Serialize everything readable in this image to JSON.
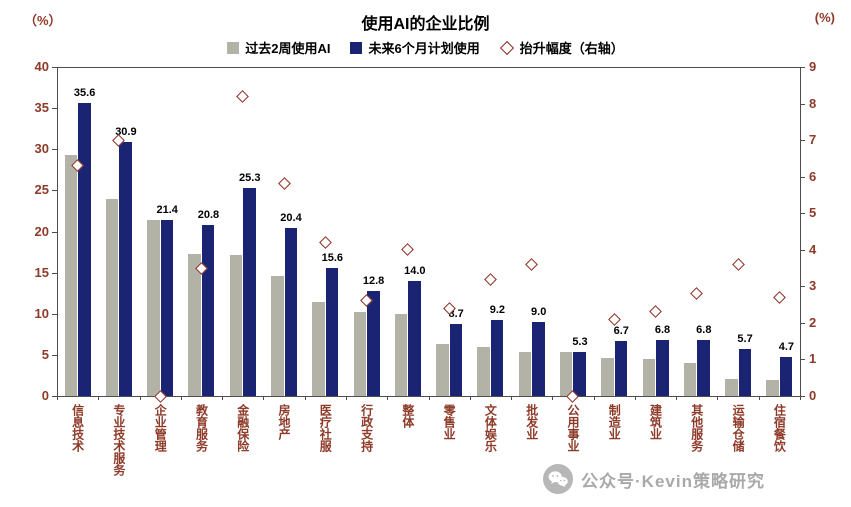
{
  "header": {
    "title": "使用AI的企业比例",
    "left_axis_unit": "（%）",
    "right_axis_unit": "(%)"
  },
  "legend": [
    {
      "label": "过去2周使用AI",
      "swatch": "gray-square"
    },
    {
      "label": "未来6个月计划使用",
      "swatch": "navy-square"
    },
    {
      "label": "抬升幅度（右轴）",
      "swatch": "diamond-outline"
    }
  ],
  "colors": {
    "gray_bar": "#b3b2a6",
    "navy_bar": "#1a2472",
    "diamond_border": "#8b2a20",
    "axis_text": "#8e3a28",
    "axis_line": "#4d4d4d",
    "value_label": "#000000"
  },
  "watermark": {
    "icon": "wechat-icon",
    "text": "公众号·Kevin策略研究"
  },
  "chart_data": {
    "type": "bar",
    "title": "使用AI的企业比例",
    "categories": [
      "信息技术",
      "专业技术服务",
      "企业管理",
      "教育服务",
      "金融保险",
      "房地产",
      "医疗社服",
      "行政支持",
      "整体",
      "零售业",
      "文体娱乐",
      "批发业",
      "公用事业",
      "制造业",
      "建筑业",
      "其他服务",
      "运输仓储",
      "住宿餐饮"
    ],
    "series": [
      {
        "name": "过去2周使用AI",
        "type": "bar",
        "axis": "left",
        "values": [
          29.3,
          23.9,
          21.4,
          17.3,
          17.1,
          14.6,
          11.4,
          10.2,
          10.0,
          6.3,
          6.0,
          5.4,
          5.3,
          4.6,
          4.5,
          4.0,
          2.1,
          2.0
        ]
      },
      {
        "name": "未来6个月计划使用",
        "type": "bar",
        "axis": "left",
        "data_labels": true,
        "values": [
          35.6,
          30.9,
          21.4,
          20.8,
          25.3,
          20.4,
          15.6,
          12.8,
          14.0,
          8.7,
          9.2,
          9.0,
          5.3,
          6.7,
          6.8,
          6.8,
          5.7,
          4.7
        ]
      },
      {
        "name": "抬升幅度（右轴）",
        "type": "scatter-diamond",
        "axis": "right",
        "values": [
          6.3,
          7.0,
          0.0,
          3.5,
          8.2,
          5.8,
          4.2,
          2.6,
          4.0,
          2.4,
          3.2,
          3.6,
          0.0,
          2.1,
          2.3,
          2.8,
          3.6,
          2.7
        ]
      }
    ],
    "left_axis": {
      "min": 0,
      "max": 40,
      "ticks": [
        0,
        5,
        10,
        15,
        20,
        25,
        30,
        35,
        40
      ],
      "unit": "（%）"
    },
    "right_axis": {
      "min": 0,
      "max": 9,
      "ticks": [
        0,
        1,
        2,
        3,
        4,
        5,
        6,
        7,
        8,
        9
      ],
      "unit": "(%)"
    },
    "grid": false,
    "legend_position": "top"
  }
}
